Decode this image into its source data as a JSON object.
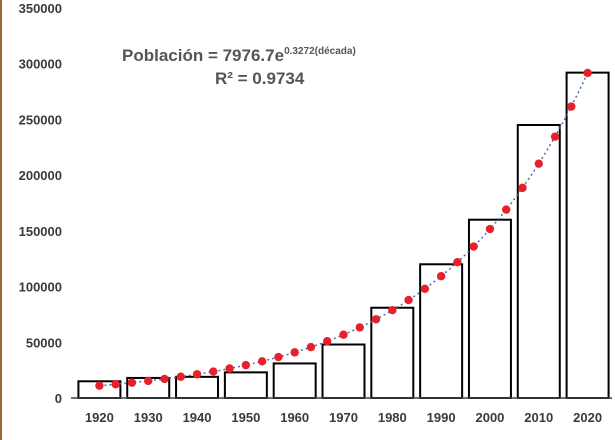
{
  "chart_data": {
    "type": "bar",
    "title": "",
    "xlabel": "",
    "ylabel": "",
    "categories": [
      "1920",
      "1930",
      "1940",
      "1950",
      "1960",
      "1970",
      "1980",
      "1990",
      "2000",
      "2010",
      "2020"
    ],
    "series": [
      {
        "name": "Población",
        "values": [
          15000,
          18000,
          19000,
          23000,
          31000,
          48000,
          81000,
          120000,
          160000,
          245000,
          292000
        ]
      }
    ],
    "trendline": {
      "type": "exponential",
      "a": 7976.7,
      "b": 0.3272,
      "r2": 0.9734,
      "points_per_category": 3
    },
    "ylim": [
      0,
      350000
    ],
    "yticks": [
      "0",
      "50000",
      "100000",
      "150000",
      "200000",
      "250000",
      "300000",
      "350000"
    ],
    "annotation": {
      "equation_prefix": "Población = 7976.7e",
      "equation_exponent": "0.3272(década)",
      "r2_text": "R² = 0.9734"
    },
    "colors": {
      "bar_fill": "#ffffff",
      "bar_stroke": "#000000",
      "trend_dot": "#e8202a",
      "trend_line": "#4a6fb5",
      "axis": "#444444",
      "frame": "#9a6a3c"
    }
  }
}
